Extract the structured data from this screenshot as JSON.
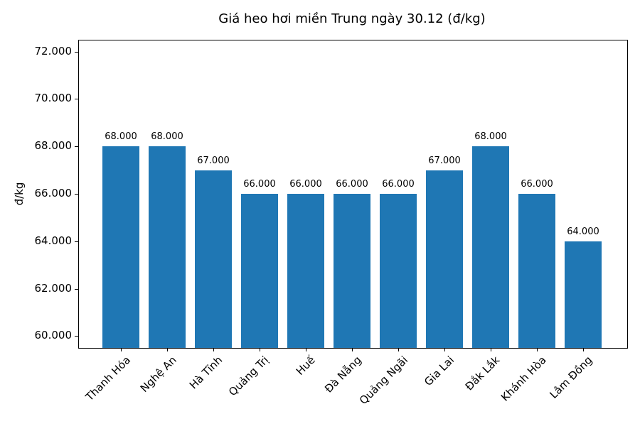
{
  "chart_data": {
    "type": "bar",
    "title": "Giá heo hơi miền Trung ngày 30.12 (đ/kg)",
    "xlabel": "",
    "ylabel": "đ/kg",
    "ylim": [
      59500,
      72500
    ],
    "yticks": [
      60000,
      62000,
      64000,
      66000,
      68000,
      70000,
      72000
    ],
    "ytick_labels": [
      "60.000",
      "62.000",
      "64.000",
      "66.000",
      "68.000",
      "70.000",
      "72.000"
    ],
    "categories": [
      "Thanh Hóa",
      "Nghệ An",
      "Hà Tĩnh",
      "Quảng Trị",
      "Huế",
      "Đà Nẵng",
      "Quảng Ngãi",
      "Gia Lai",
      "Đắk Lắk",
      "Khánh Hòa",
      "Lâm Đồng"
    ],
    "values": [
      68000,
      68000,
      67000,
      66000,
      66000,
      66000,
      66000,
      67000,
      68000,
      66000,
      64000
    ],
    "value_labels": [
      "68.000",
      "68.000",
      "67.000",
      "66.000",
      "66.000",
      "66.000",
      "66.000",
      "67.000",
      "68.000",
      "66.000",
      "64.000"
    ],
    "bar_color": "#1f77b4",
    "grid": false,
    "legend": null,
    "xtick_rotation": 45
  }
}
